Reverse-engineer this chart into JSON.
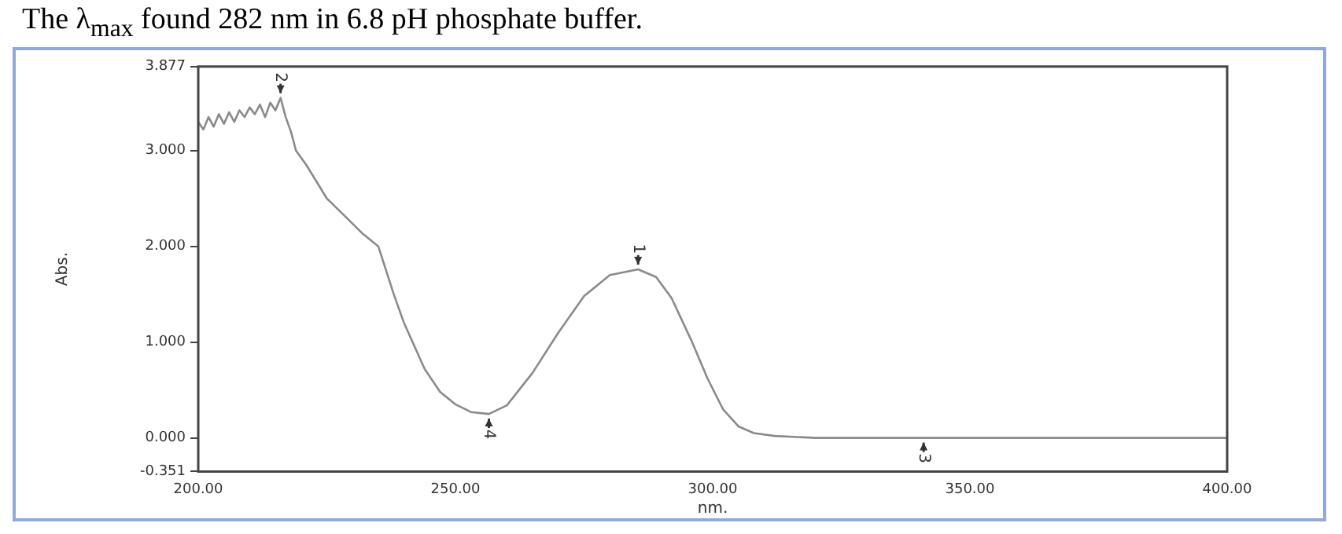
{
  "chart_data": {
    "type": "line",
    "title": "The λ$_{max}$ found 282 nm in 6.8 pH phosphate buffer.",
    "xlabel": "nm.",
    "ylabel": "Abs.",
    "x": [
      200,
      201,
      202,
      203,
      204,
      205,
      206,
      207,
      208,
      209,
      210,
      211,
      212,
      213,
      214,
      215,
      216,
      217,
      218,
      219,
      221,
      225,
      229,
      232,
      235,
      238,
      240,
      244,
      247,
      250,
      253,
      256.5,
      260,
      265,
      270,
      275,
      280,
      285.5,
      289,
      292,
      296,
      299,
      302,
      305,
      308,
      312,
      320,
      340,
      400
    ],
    "series": [
      {
        "color": "#8a8a8a",
        "values": [
          3.3,
          3.22,
          3.35,
          3.25,
          3.38,
          3.28,
          3.4,
          3.3,
          3.42,
          3.35,
          3.45,
          3.38,
          3.48,
          3.35,
          3.5,
          3.42,
          3.55,
          3.35,
          3.2,
          3.0,
          2.85,
          2.5,
          2.29,
          2.13,
          2.0,
          1.5,
          1.2,
          0.72,
          0.48,
          0.35,
          0.27,
          0.25,
          0.34,
          0.68,
          1.1,
          1.48,
          1.7,
          1.76,
          1.68,
          1.46,
          1.0,
          0.62,
          0.3,
          0.12,
          0.05,
          0.02,
          0.0,
          0.0,
          0.0
        ]
      }
    ],
    "xlim": [
      200,
      400
    ],
    "xticks": [
      {
        "value": 200,
        "label": "200.00"
      },
      {
        "value": 250,
        "label": "250.00"
      },
      {
        "value": 300,
        "label": "300.00"
      },
      {
        "value": 350,
        "label": "350.00"
      },
      {
        "value": 400,
        "label": "400.00"
      }
    ],
    "ylim": [
      -0.351,
      3.877
    ],
    "yticks": [
      -0.351,
      {
        "value": 0,
        "label": "0.000"
      },
      {
        "value": 1,
        "label": "1.000"
      },
      {
        "value": 2,
        "label": "2.000"
      },
      {
        "value": 3,
        "label": "3.000"
      },
      3.877
    ],
    "annotations": [
      {
        "text": "1",
        "x": 285.5,
        "y": 1.76
      },
      {
        "text": "2",
        "x": 216,
        "y": 3.55
      },
      {
        "text": "3",
        "x": 341,
        "y": 0.0
      },
      {
        "text": "4",
        "x": 256.5,
        "y": 0.25
      }
    ],
    "grid": false,
    "legend": false,
    "marker": "none",
    "line_style": "solid"
  }
}
